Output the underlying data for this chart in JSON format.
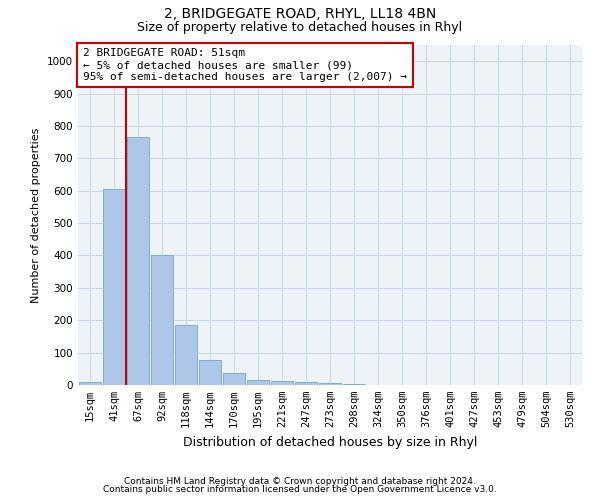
{
  "title1": "2, BRIDGEGATE ROAD, RHYL, LL18 4BN",
  "title2": "Size of property relative to detached houses in Rhyl",
  "xlabel": "Distribution of detached houses by size in Rhyl",
  "ylabel": "Number of detached properties",
  "footnote1": "Contains HM Land Registry data © Crown copyright and database right 2024.",
  "footnote2": "Contains public sector information licensed under the Open Government Licence v3.0.",
  "bar_labels": [
    "15sqm",
    "41sqm",
    "67sqm",
    "92sqm",
    "118sqm",
    "144sqm",
    "170sqm",
    "195sqm",
    "221sqm",
    "247sqm",
    "273sqm",
    "298sqm",
    "324sqm",
    "350sqm",
    "376sqm",
    "401sqm",
    "427sqm",
    "453sqm",
    "479sqm",
    "504sqm",
    "530sqm"
  ],
  "bar_values": [
    10,
    605,
    765,
    400,
    185,
    78,
    38,
    15,
    12,
    8,
    5,
    3,
    0,
    0,
    0,
    0,
    0,
    0,
    0,
    0,
    0
  ],
  "bar_color": "#aec6e8",
  "bar_edge_color": "#7aafd4",
  "grid_color": "#c8d8e8",
  "bg_color": "#eef3f8",
  "annotation_line1": "2 BRIDGEGATE ROAD: 51sqm",
  "annotation_line2": "← 5% of detached houses are smaller (99)",
  "annotation_line3": "95% of semi-detached houses are larger (2,007) →",
  "annotation_box_color": "#ffffff",
  "annotation_box_edge": "#cc0000",
  "vline_color": "#cc0000",
  "vline_x": 1.5,
  "ylim": [
    0,
    1050
  ],
  "yticks": [
    0,
    100,
    200,
    300,
    400,
    500,
    600,
    700,
    800,
    900,
    1000
  ],
  "title1_fontsize": 10,
  "title2_fontsize": 9,
  "ylabel_fontsize": 8,
  "xlabel_fontsize": 9,
  "tick_fontsize": 7.5,
  "annot_fontsize": 8
}
